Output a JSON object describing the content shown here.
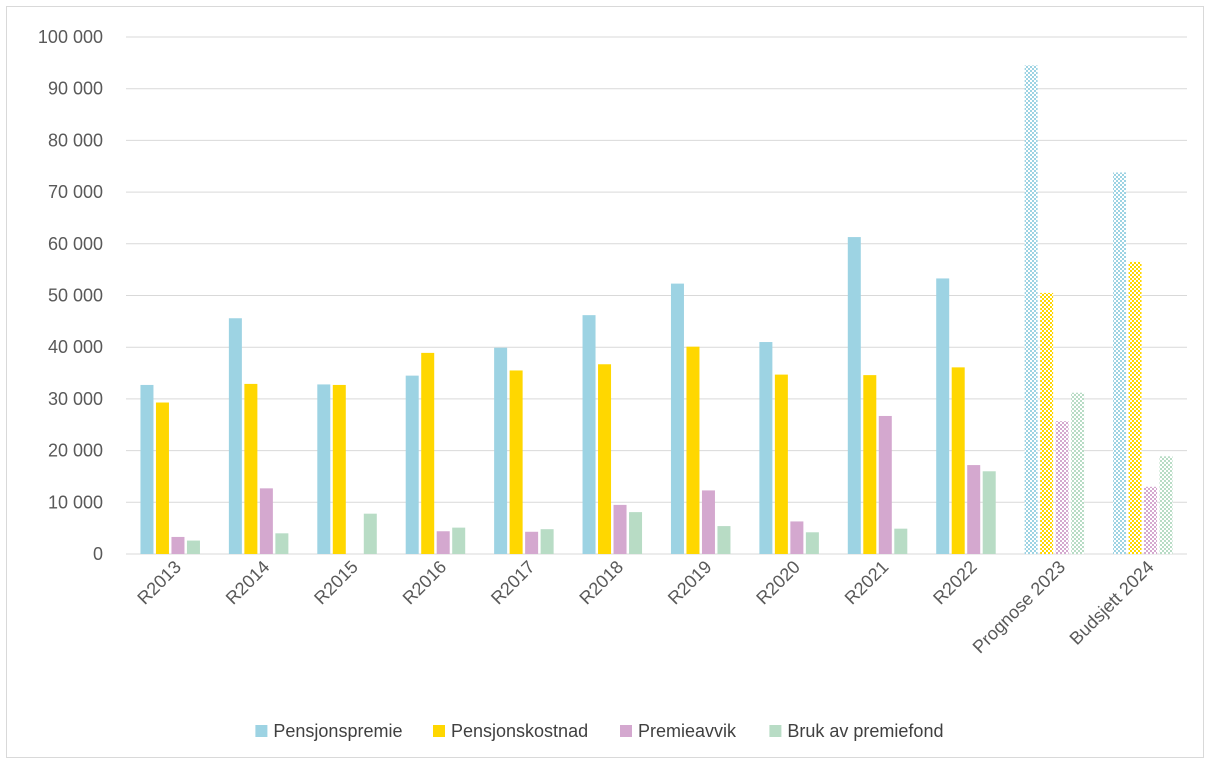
{
  "chart_data": {
    "type": "bar",
    "categories": [
      "R2013",
      "R2014",
      "R2015",
      "R2016",
      "R2017",
      "R2018",
      "R2019",
      "R2020",
      "R2021",
      "R2022",
      "Prognose 2023",
      "Budsjett 2024"
    ],
    "hatched_categories": [
      "Prognose 2023",
      "Budsjett 2024"
    ],
    "series": [
      {
        "name": "Pensjonspremie",
        "color": "#9DD3E3",
        "values": [
          32700,
          45600,
          32800,
          34500,
          39900,
          46200,
          52300,
          41000,
          61300,
          53300,
          94500,
          73800
        ]
      },
      {
        "name": "Pensjonskostnad",
        "color": "#FFD700",
        "values": [
          29300,
          32900,
          32700,
          38900,
          35500,
          36700,
          40100,
          34700,
          34600,
          36100,
          50500,
          56500
        ]
      },
      {
        "name": "Premieavvik",
        "color": "#D4A8CF",
        "values": [
          3300,
          12700,
          0,
          4400,
          4300,
          9500,
          12300,
          6300,
          26700,
          17200,
          25700,
          13000
        ]
      },
      {
        "name": "Bruk av premiefond",
        "color": "#B8DCC5",
        "values": [
          2600,
          4000,
          7800,
          5100,
          4800,
          8100,
          5400,
          4200,
          4900,
          16000,
          31200,
          18900
        ]
      }
    ],
    "ylim": [
      0,
      100000
    ],
    "yticks": [
      "0",
      "10 000",
      "20 000",
      "30 000",
      "40 000",
      "50 000",
      "60 000",
      "70 000",
      "80 000",
      "90 000",
      "100 000"
    ],
    "grid": true,
    "legend_position": "bottom"
  }
}
